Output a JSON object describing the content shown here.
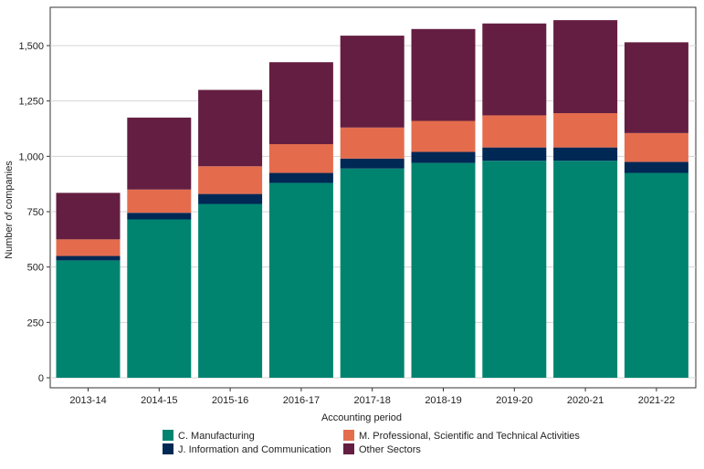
{
  "chart_data": {
    "type": "bar",
    "stacked": true,
    "title": "",
    "xlabel": "Accounting period",
    "ylabel": "Number of companies",
    "ylim": [
      0,
      1650
    ],
    "yticks": [
      0,
      250,
      500,
      750,
      1000,
      1250,
      1500
    ],
    "ytick_labels": [
      "0",
      "250",
      "500",
      "750",
      "1,000",
      "1,250",
      "1,500"
    ],
    "grid": "horizontal",
    "legend_position": "bottom",
    "categories": [
      "2013-14",
      "2014-15",
      "2015-16",
      "2016-17",
      "2017-18",
      "2018-19",
      "2019-20",
      "2020-21",
      "2021-22"
    ],
    "series": [
      {
        "name": "C. Manufacturing",
        "color": "#008470",
        "values": [
          530,
          715,
          785,
          880,
          945,
          970,
          980,
          980,
          925
        ]
      },
      {
        "name": "J. Information and Communication",
        "color": "#002855",
        "values": [
          20,
          30,
          45,
          45,
          45,
          50,
          60,
          60,
          50
        ]
      },
      {
        "name": "M. Professional, Scientific and Technical Activities",
        "color": "#E46C4D",
        "values": [
          75,
          105,
          125,
          130,
          140,
          140,
          145,
          155,
          130
        ]
      },
      {
        "name": "Other Sectors",
        "color": "#641E41",
        "values": [
          210,
          325,
          345,
          370,
          415,
          415,
          415,
          420,
          410
        ]
      }
    ]
  }
}
